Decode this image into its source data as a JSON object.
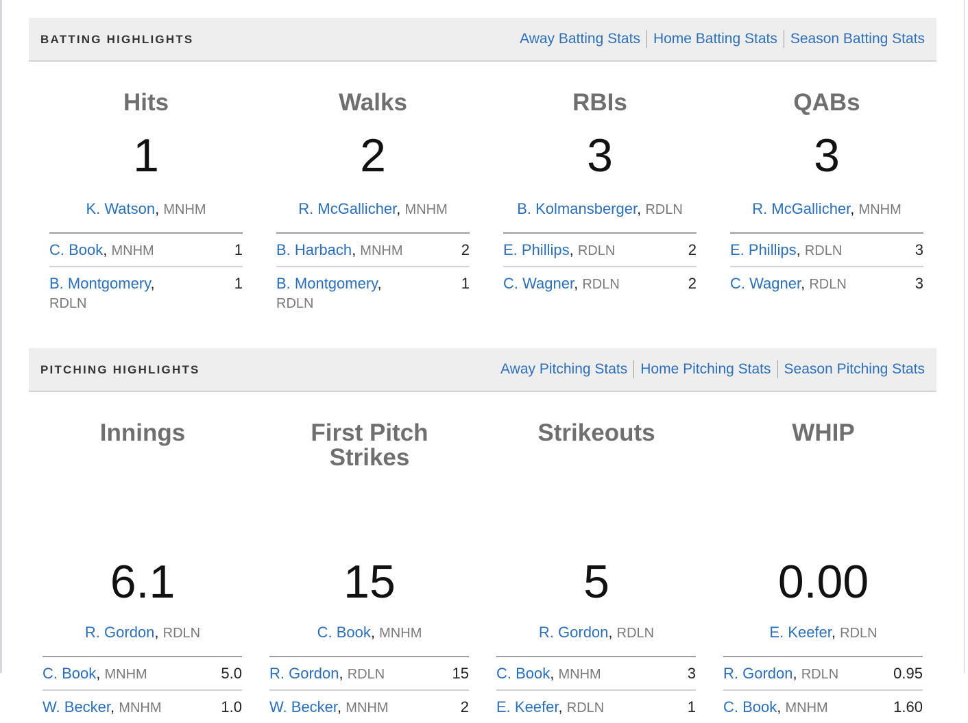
{
  "batting": {
    "title": "BATTING HIGHLIGHTS",
    "links": [
      "Away Batting Stats",
      "Home Batting Stats",
      "Season Batting Stats"
    ],
    "categories": [
      {
        "title": "Hits",
        "value": "1",
        "leader": {
          "name": "K. Watson",
          "team": "MNHM"
        },
        "others": [
          {
            "name": "C. Book",
            "team": "MNHM",
            "value": "1"
          },
          {
            "name": "B. Montgomery",
            "team": "RDLN",
            "value": "1"
          }
        ]
      },
      {
        "title": "Walks",
        "value": "2",
        "leader": {
          "name": "R. McGallicher",
          "team": "MNHM"
        },
        "others": [
          {
            "name": "B. Harbach",
            "team": "MNHM",
            "value": "2"
          },
          {
            "name": "B. Montgomery",
            "team": "RDLN",
            "value": "1"
          }
        ]
      },
      {
        "title": "RBIs",
        "value": "3",
        "leader": {
          "name": "B. Kolmansberger",
          "team": "RDLN"
        },
        "others": [
          {
            "name": "E. Phillips",
            "team": "RDLN",
            "value": "2"
          },
          {
            "name": "C. Wagner",
            "team": "RDLN",
            "value": "2"
          }
        ]
      },
      {
        "title": "QABs",
        "value": "3",
        "leader": {
          "name": "R. McGallicher",
          "team": "MNHM"
        },
        "others": [
          {
            "name": "E. Phillips",
            "team": "RDLN",
            "value": "3"
          },
          {
            "name": "C. Wagner",
            "team": "RDLN",
            "value": "3"
          }
        ]
      }
    ]
  },
  "pitching": {
    "title": "PITCHING HIGHLIGHTS",
    "links": [
      "Away Pitching Stats",
      "Home Pitching Stats",
      "Season Pitching Stats"
    ],
    "categories": [
      {
        "title": "Innings",
        "value": "6.1",
        "leader": {
          "name": "R. Gordon",
          "team": "RDLN"
        },
        "others": [
          {
            "name": "C. Book",
            "team": "MNHM",
            "value": "5.0"
          },
          {
            "name": "W. Becker",
            "team": "MNHM",
            "value": "1.0"
          }
        ]
      },
      {
        "title": "First Pitch Strikes",
        "value": "15",
        "leader": {
          "name": "C. Book",
          "team": "MNHM"
        },
        "others": [
          {
            "name": "R. Gordon",
            "team": "RDLN",
            "value": "15"
          },
          {
            "name": "W. Becker",
            "team": "MNHM",
            "value": "2"
          }
        ]
      },
      {
        "title": "Strikeouts",
        "value": "5",
        "leader": {
          "name": "R. Gordon",
          "team": "RDLN"
        },
        "others": [
          {
            "name": "C. Book",
            "team": "MNHM",
            "value": "3"
          },
          {
            "name": "E. Keefer",
            "team": "RDLN",
            "value": "1"
          }
        ]
      },
      {
        "title": "WHIP",
        "value": "0.00",
        "leader": {
          "name": "E. Keefer",
          "team": "RDLN"
        },
        "others": [
          {
            "name": "R. Gordon",
            "team": "RDLN",
            "value": "0.95"
          },
          {
            "name": "C. Book",
            "team": "MNHM",
            "value": "1.60"
          }
        ]
      }
    ]
  }
}
